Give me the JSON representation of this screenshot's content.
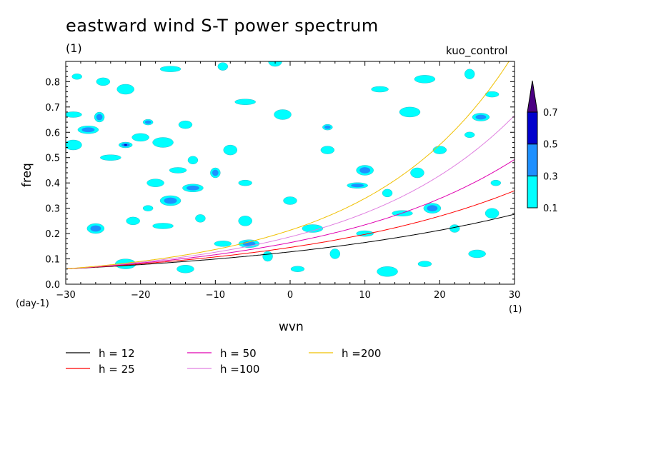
{
  "chart_data": {
    "type": "heatmap",
    "title": "eastward wind S-T power spectrum",
    "subtitle": "(1)",
    "experiment": "kuo_control",
    "xlabel": "wvn",
    "ylabel": "freq",
    "x_unit": "(1)",
    "y_unit": "(day-1)",
    "xlim": [
      -30,
      30
    ],
    "ylim": [
      0,
      0.88
    ],
    "x_ticks": [
      "−30",
      "−20",
      "−10",
      "0",
      "10",
      "20",
      "30"
    ],
    "y_ticks": [
      "0.0",
      "0.1",
      "0.2",
      "0.3",
      "0.4",
      "0.5",
      "0.6",
      "0.7",
      "0.8"
    ],
    "colorbar": {
      "levels": [
        "0.1",
        "0.3",
        "0.5",
        "0.7"
      ],
      "colors": [
        "#00ffff",
        "#1e90ff",
        "#0000cd",
        "#4b0082"
      ]
    },
    "contour_blobs": [
      {
        "x": -28.5,
        "y": 0.82,
        "level": 1
      },
      {
        "x": -25,
        "y": 0.8,
        "level": 1
      },
      {
        "x": -22,
        "y": 0.77,
        "level": 1
      },
      {
        "x": -16,
        "y": 0.85,
        "level": 1
      },
      {
        "x": -9,
        "y": 0.86,
        "level": 1
      },
      {
        "x": -2,
        "y": 0.88,
        "level": 1
      },
      {
        "x": -29,
        "y": 0.67,
        "level": 1
      },
      {
        "x": -27,
        "y": 0.61,
        "level": 2
      },
      {
        "x": -25.5,
        "y": 0.66,
        "level": 2
      },
      {
        "x": -22,
        "y": 0.55,
        "level": 3
      },
      {
        "x": -20,
        "y": 0.58,
        "level": 1
      },
      {
        "x": -17,
        "y": 0.56,
        "level": 1
      },
      {
        "x": -19,
        "y": 0.64,
        "level": 2
      },
      {
        "x": -14,
        "y": 0.63,
        "level": 1
      },
      {
        "x": -29,
        "y": 0.55,
        "level": 1
      },
      {
        "x": -24,
        "y": 0.5,
        "level": 1
      },
      {
        "x": -13,
        "y": 0.49,
        "level": 1
      },
      {
        "x": -8,
        "y": 0.53,
        "level": 1
      },
      {
        "x": -15,
        "y": 0.45,
        "level": 1
      },
      {
        "x": -13,
        "y": 0.38,
        "level": 2
      },
      {
        "x": -10,
        "y": 0.44,
        "level": 2
      },
      {
        "x": -6,
        "y": 0.4,
        "level": 1
      },
      {
        "x": -18,
        "y": 0.4,
        "level": 1
      },
      {
        "x": -16,
        "y": 0.33,
        "level": 2
      },
      {
        "x": -19,
        "y": 0.3,
        "level": 1
      },
      {
        "x": -21,
        "y": 0.25,
        "level": 1
      },
      {
        "x": -26,
        "y": 0.22,
        "level": 2
      },
      {
        "x": -17,
        "y": 0.23,
        "level": 1
      },
      {
        "x": -12,
        "y": 0.26,
        "level": 1
      },
      {
        "x": -6,
        "y": 0.25,
        "level": 1
      },
      {
        "x": -9,
        "y": 0.16,
        "level": 1
      },
      {
        "x": -5.5,
        "y": 0.16,
        "level": 2
      },
      {
        "x": -3,
        "y": 0.11,
        "level": 1
      },
      {
        "x": 1,
        "y": 0.06,
        "level": 1
      },
      {
        "x": -14,
        "y": 0.06,
        "level": 1
      },
      {
        "x": -22,
        "y": 0.08,
        "level": 1
      },
      {
        "x": 5,
        "y": 0.62,
        "level": 2
      },
      {
        "x": 5,
        "y": 0.53,
        "level": 1
      },
      {
        "x": 10,
        "y": 0.45,
        "level": 2
      },
      {
        "x": 9,
        "y": 0.39,
        "level": 2
      },
      {
        "x": 13,
        "y": 0.36,
        "level": 1
      },
      {
        "x": 17,
        "y": 0.44,
        "level": 1
      },
      {
        "x": 12,
        "y": 0.77,
        "level": 1
      },
      {
        "x": 18,
        "y": 0.81,
        "level": 1
      },
      {
        "x": 24,
        "y": 0.83,
        "level": 1
      },
      {
        "x": 27,
        "y": 0.75,
        "level": 1
      },
      {
        "x": 25.5,
        "y": 0.66,
        "level": 2
      },
      {
        "x": 16,
        "y": 0.68,
        "level": 1
      },
      {
        "x": 24,
        "y": 0.59,
        "level": 1
      },
      {
        "x": 20,
        "y": 0.53,
        "level": 1
      },
      {
        "x": 19,
        "y": 0.3,
        "level": 2
      },
      {
        "x": 15,
        "y": 0.28,
        "level": 1
      },
      {
        "x": 22,
        "y": 0.22,
        "level": 1
      },
      {
        "x": 27,
        "y": 0.28,
        "level": 1
      },
      {
        "x": 10,
        "y": 0.2,
        "level": 1
      },
      {
        "x": 3,
        "y": 0.22,
        "level": 1
      },
      {
        "x": 6,
        "y": 0.12,
        "level": 1
      },
      {
        "x": 18,
        "y": 0.08,
        "level": 1
      },
      {
        "x": 25,
        "y": 0.12,
        "level": 1
      },
      {
        "x": 13,
        "y": 0.05,
        "level": 1
      },
      {
        "x": 27.5,
        "y": 0.4,
        "level": 1
      },
      {
        "x": 0,
        "y": 0.33,
        "level": 1
      },
      {
        "x": -1,
        "y": 0.67,
        "level": 1
      },
      {
        "x": -6,
        "y": 0.72,
        "level": 1
      }
    ],
    "series": [
      {
        "name": "h = 12",
        "h": 12,
        "color": "#000000"
      },
      {
        "name": "h = 25",
        "h": 25,
        "color": "#ff0000"
      },
      {
        "name": "h = 50",
        "h": 50,
        "color": "#e000b0"
      },
      {
        "name": "h =100",
        "h": 100,
        "color": "#e080e0"
      },
      {
        "name": "h =200",
        "h": 200,
        "color": "#f0c000"
      }
    ]
  }
}
